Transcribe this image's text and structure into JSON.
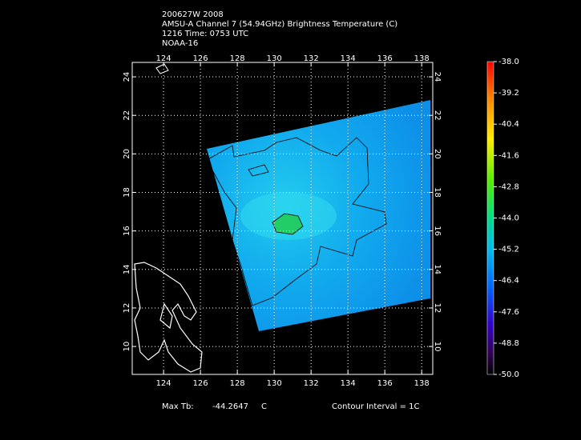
{
  "header": {
    "lines": [
      "200627W 2008",
      "AMSU-A Channel 7 (54.94GHz) Brightness Temperature (C)",
      "1216 Time: 0753 UTC",
      "NOAA-16"
    ]
  },
  "map": {
    "xlim": [
      122.3,
      138.6
    ],
    "xticks": [
      124,
      126,
      128,
      130,
      132,
      134,
      136,
      138
    ],
    "ylim": [
      8.55,
      24.75
    ],
    "yticks": [
      10,
      12,
      14,
      16,
      18,
      20,
      22,
      24
    ],
    "grid": true
  },
  "colorbar": {
    "lim": [
      -50,
      -38
    ],
    "ticks": [
      {
        "value": -38,
        "label": "-38.0"
      },
      -39.2,
      -40.4,
      -41.6,
      -42.8,
      {
        "value": -44,
        "label": "-44.0"
      },
      -45.2,
      -46.4,
      -47.6,
      -48.8,
      {
        "value": -50,
        "label": "-50.0"
      }
    ]
  },
  "footer": {
    "max_label": "Max Tb:",
    "max_value": -44.2647,
    "unit": "C",
    "contour": "Contour Interval = 1C"
  }
}
